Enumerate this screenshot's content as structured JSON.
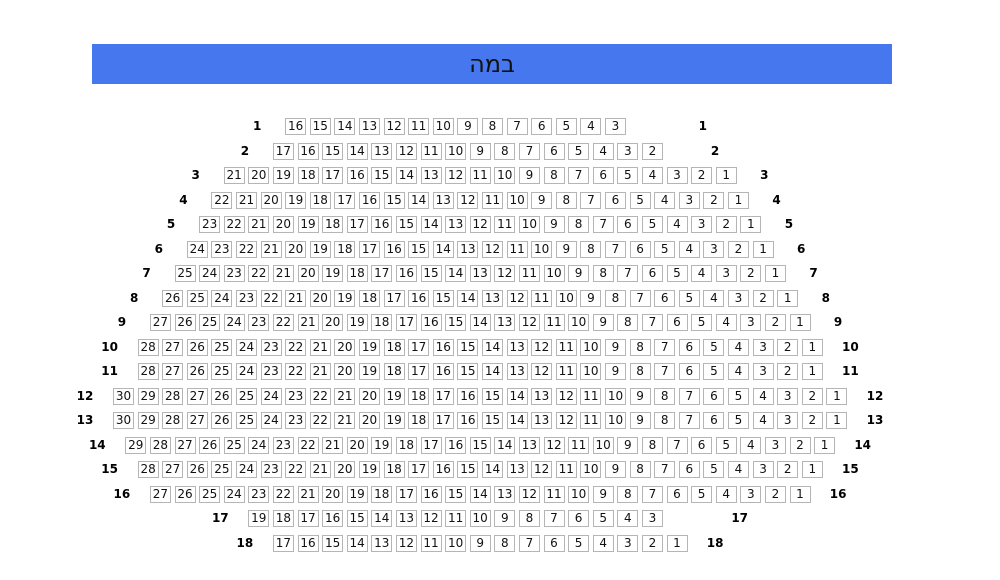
{
  "stage": {
    "label": "במה",
    "color": "#4677ef"
  },
  "rows": [
    {
      "label": "1",
      "seats": [
        16,
        15,
        14,
        13,
        12,
        11,
        10,
        9,
        8,
        7,
        6,
        5,
        4,
        3,
        null,
        null
      ]
    },
    {
      "label": "2",
      "seats": [
        17,
        16,
        15,
        14,
        13,
        12,
        11,
        10,
        9,
        8,
        7,
        6,
        5,
        4,
        3,
        2,
        null
      ]
    },
    {
      "label": "3",
      "seats": [
        21,
        20,
        19,
        18,
        17,
        16,
        15,
        14,
        13,
        12,
        11,
        10,
        9,
        8,
        7,
        6,
        5,
        4,
        3,
        2,
        1
      ]
    },
    {
      "label": "4",
      "seats": [
        22,
        21,
        20,
        19,
        18,
        17,
        16,
        15,
        14,
        13,
        12,
        11,
        10,
        9,
        8,
        7,
        6,
        5,
        4,
        3,
        2,
        1
      ]
    },
    {
      "label": "5",
      "seats": [
        23,
        22,
        21,
        20,
        19,
        18,
        17,
        16,
        15,
        14,
        13,
        12,
        11,
        10,
        9,
        8,
        7,
        6,
        5,
        4,
        3,
        2,
        1
      ]
    },
    {
      "label": "6",
      "seats": [
        24,
        23,
        22,
        21,
        20,
        19,
        18,
        17,
        16,
        15,
        14,
        13,
        12,
        11,
        10,
        9,
        8,
        7,
        6,
        5,
        4,
        3,
        2,
        1
      ]
    },
    {
      "label": "7",
      "seats": [
        25,
        24,
        23,
        22,
        21,
        20,
        19,
        18,
        17,
        16,
        15,
        14,
        13,
        12,
        11,
        10,
        9,
        8,
        7,
        6,
        5,
        4,
        3,
        2,
        1
      ]
    },
    {
      "label": "8",
      "seats": [
        26,
        25,
        24,
        23,
        22,
        21,
        20,
        19,
        18,
        17,
        16,
        15,
        14,
        13,
        12,
        11,
        10,
        9,
        8,
        7,
        6,
        5,
        4,
        3,
        2,
        1
      ]
    },
    {
      "label": "9",
      "seats": [
        27,
        26,
        25,
        24,
        23,
        22,
        21,
        20,
        19,
        18,
        17,
        16,
        15,
        14,
        13,
        12,
        11,
        10,
        9,
        8,
        7,
        6,
        5,
        4,
        3,
        2,
        1
      ]
    },
    {
      "label": "10",
      "seats": [
        28,
        27,
        26,
        25,
        24,
        23,
        22,
        21,
        20,
        19,
        18,
        17,
        16,
        15,
        14,
        13,
        12,
        11,
        10,
        9,
        8,
        7,
        6,
        5,
        4,
        3,
        2,
        1
      ]
    },
    {
      "label": "11",
      "seats": [
        28,
        27,
        26,
        25,
        24,
        23,
        22,
        21,
        20,
        19,
        18,
        17,
        16,
        15,
        14,
        13,
        12,
        11,
        10,
        9,
        8,
        7,
        6,
        5,
        4,
        3,
        2,
        1
      ]
    },
    {
      "label": "12",
      "seats": [
        30,
        29,
        28,
        27,
        26,
        25,
        24,
        23,
        22,
        21,
        20,
        19,
        18,
        17,
        16,
        15,
        14,
        13,
        12,
        11,
        10,
        9,
        8,
        7,
        6,
        5,
        4,
        3,
        2,
        1
      ]
    },
    {
      "label": "13",
      "seats": [
        30,
        29,
        28,
        27,
        26,
        25,
        24,
        23,
        22,
        21,
        20,
        19,
        18,
        17,
        16,
        15,
        14,
        13,
        12,
        11,
        10,
        9,
        8,
        7,
        6,
        5,
        4,
        3,
        2,
        1
      ]
    },
    {
      "label": "14",
      "seats": [
        29,
        28,
        27,
        26,
        25,
        24,
        23,
        22,
        21,
        20,
        19,
        18,
        17,
        16,
        15,
        14,
        13,
        12,
        11,
        10,
        9,
        8,
        7,
        6,
        5,
        4,
        3,
        2,
        1
      ]
    },
    {
      "label": "15",
      "seats": [
        28,
        27,
        26,
        25,
        24,
        23,
        22,
        21,
        20,
        19,
        18,
        17,
        16,
        15,
        14,
        13,
        12,
        11,
        10,
        9,
        8,
        7,
        6,
        5,
        4,
        3,
        2,
        1
      ]
    },
    {
      "label": "16",
      "seats": [
        27,
        26,
        25,
        24,
        23,
        22,
        21,
        20,
        19,
        18,
        17,
        16,
        15,
        14,
        13,
        12,
        11,
        10,
        9,
        8,
        7,
        6,
        5,
        4,
        3,
        2,
        1
      ]
    },
    {
      "label": "17",
      "seats": [
        19,
        18,
        17,
        16,
        15,
        14,
        13,
        12,
        11,
        10,
        9,
        8,
        7,
        6,
        5,
        4,
        3,
        null,
        null
      ]
    },
    {
      "label": "18",
      "seats": [
        17,
        16,
        15,
        14,
        13,
        12,
        11,
        10,
        9,
        8,
        7,
        6,
        5,
        4,
        3,
        2,
        1
      ]
    }
  ]
}
